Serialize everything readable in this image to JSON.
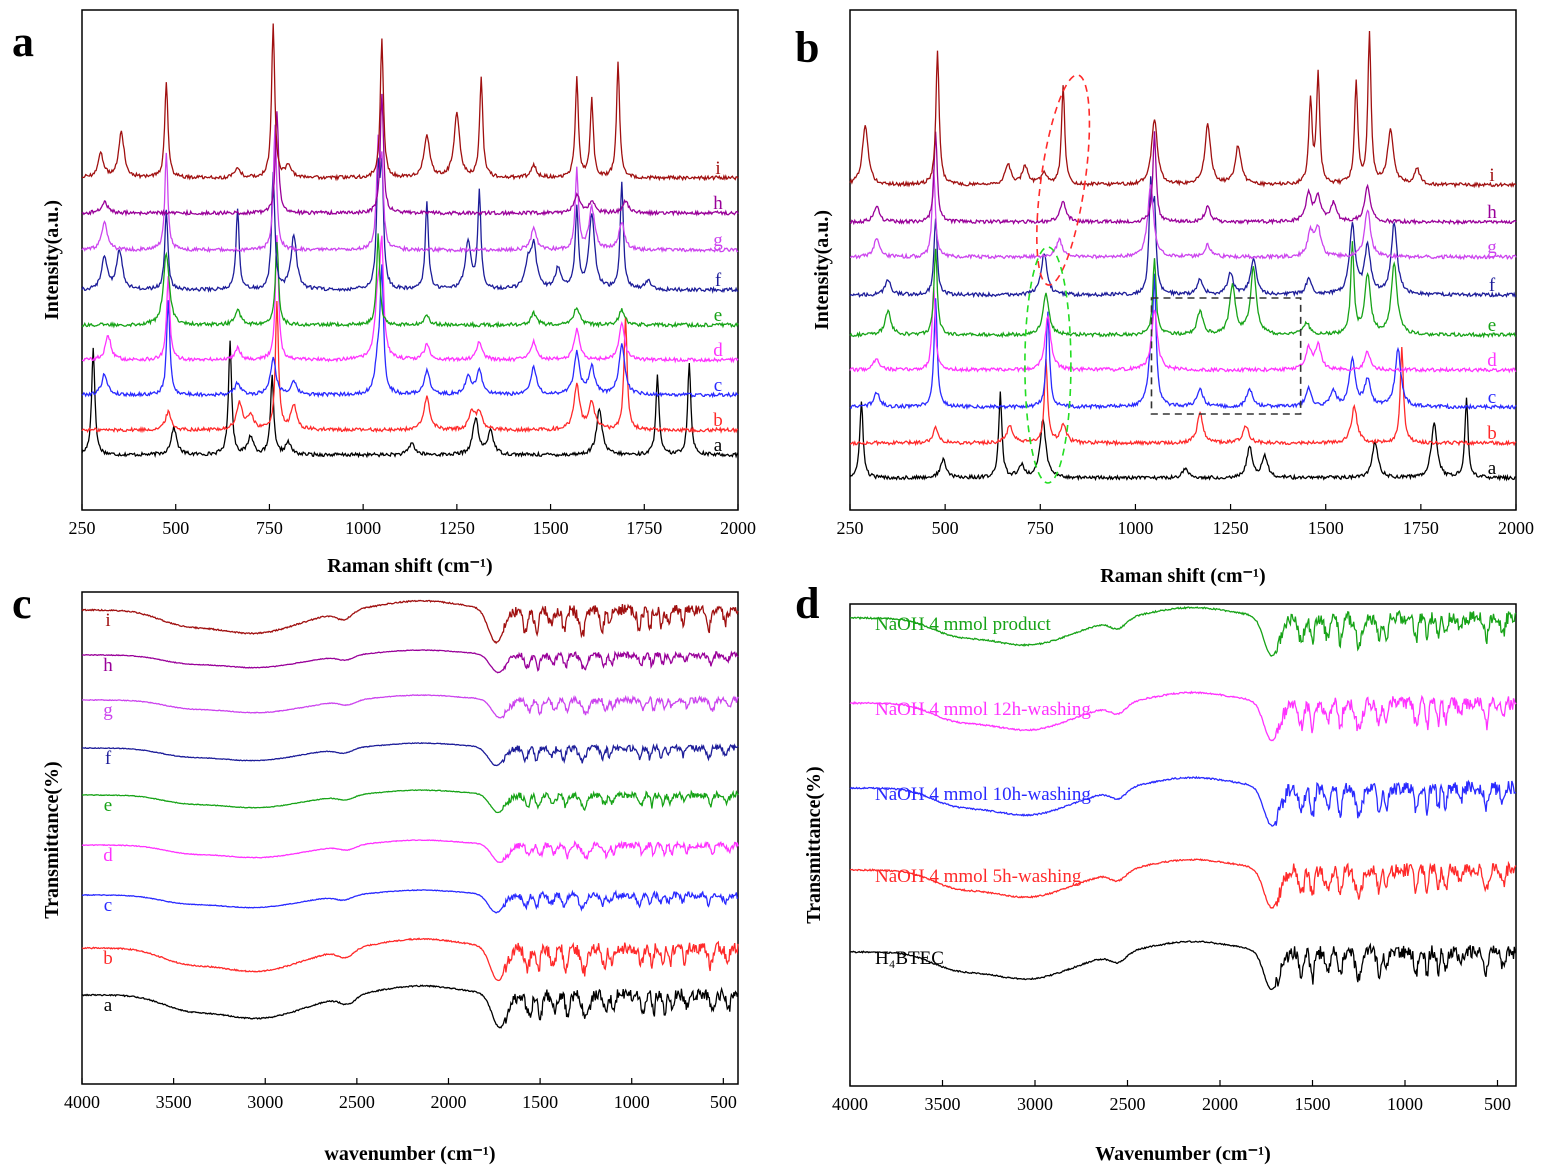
{
  "figure": {
    "panels": [
      {
        "letter": "a",
        "xlabel": "Raman shift (cm⁻¹)",
        "ylabel": "Intensity(a.u.)"
      },
      {
        "letter": "b",
        "xlabel": "Raman shift (cm⁻¹)",
        "ylabel": "Intensity(a.u.)"
      },
      {
        "letter": "c",
        "xlabel": "wavenumber (cm⁻¹)",
        "ylabel": "Transmittance(%)"
      },
      {
        "letter": "d",
        "xlabel": "Wavenumber (cm⁻¹)",
        "ylabel": "Transmittance(%)"
      }
    ]
  },
  "colors": {
    "a": "#000000",
    "b": "#ff2a2a",
    "c": "#2a2aff",
    "d": "#ff33ff",
    "e": "#17a317",
    "f": "#1d1d99",
    "g": "#cc44ee",
    "h": "#990099",
    "i": "#a01010"
  },
  "chart_data": [
    {
      "panel": "a",
      "type": "line",
      "title": "",
      "xlabel": "Raman shift (cm⁻¹)",
      "ylabel": "Intensity(a.u.)",
      "xlim": [
        250,
        2000
      ],
      "xticks": [
        250,
        500,
        750,
        1000,
        1250,
        1500,
        1750,
        2000
      ],
      "reversed": false,
      "series": [
        {
          "name": "a",
          "peaks": [
            [
              280,
              3.6
            ],
            [
              495,
              0.9
            ],
            [
              645,
              3.8
            ],
            [
              700,
              0.6
            ],
            [
              757,
              2.6
            ],
            [
              800,
              0.4
            ],
            [
              1130,
              0.4
            ],
            [
              1300,
              1.2
            ],
            [
              1340,
              0.8
            ],
            [
              1630,
              1.5
            ],
            [
              1785,
              2.7
            ],
            [
              1870,
              3.1
            ]
          ]
        },
        {
          "name": "b",
          "peaks": [
            [
              480,
              0.6
            ],
            [
              670,
              0.9
            ],
            [
              700,
              0.5
            ],
            [
              770,
              4.2
            ],
            [
              815,
              0.8
            ],
            [
              1170,
              1.1
            ],
            [
              1290,
              0.6
            ],
            [
              1310,
              0.6
            ],
            [
              1570,
              1.5
            ],
            [
              1610,
              0.9
            ],
            [
              1700,
              3.8
            ]
          ]
        },
        {
          "name": "c",
          "peaks": [
            [
              310,
              0.7
            ],
            [
              480,
              3.2
            ],
            [
              665,
              0.4
            ],
            [
              760,
              1.2
            ],
            [
              815,
              0.4
            ],
            [
              1040,
              1.2
            ],
            [
              1050,
              3.8
            ],
            [
              1170,
              0.8
            ],
            [
              1280,
              0.6
            ],
            [
              1310,
              0.8
            ],
            [
              1455,
              0.9
            ],
            [
              1570,
              1.4
            ],
            [
              1610,
              0.9
            ],
            [
              1690,
              1.7
            ]
          ]
        },
        {
          "name": "d",
          "peaks": [
            [
              320,
              0.8
            ],
            [
              480,
              2.8
            ],
            [
              665,
              0.4
            ],
            [
              770,
              4.2
            ],
            [
              1040,
              2.2
            ],
            [
              1050,
              3.2
            ],
            [
              1170,
              0.5
            ],
            [
              1310,
              0.6
            ],
            [
              1455,
              0.6
            ],
            [
              1570,
              1.0
            ],
            [
              1690,
              1.2
            ]
          ]
        },
        {
          "name": "e",
          "peaks": [
            [
              475,
              2.4
            ],
            [
              665,
              0.5
            ],
            [
              770,
              2.8
            ],
            [
              1040,
              3.0
            ],
            [
              1170,
              0.3
            ],
            [
              1455,
              0.4
            ],
            [
              1570,
              0.6
            ],
            [
              1690,
              0.5
            ]
          ]
        },
        {
          "name": "f",
          "peaks": [
            [
              310,
              1.1
            ],
            [
              350,
              1.3
            ],
            [
              475,
              2.6
            ],
            [
              665,
              2.7
            ],
            [
              760,
              3.9
            ],
            [
              815,
              1.8
            ],
            [
              1040,
              3.6
            ],
            [
              1050,
              3.8
            ],
            [
              1170,
              2.9
            ],
            [
              1280,
              1.6
            ],
            [
              1310,
              3.2
            ],
            [
              1440,
              0.8
            ],
            [
              1455,
              1.4
            ],
            [
              1520,
              0.7
            ],
            [
              1570,
              2.7
            ],
            [
              1610,
              2.5
            ],
            [
              1690,
              3.6
            ],
            [
              1760,
              0.3
            ]
          ]
        },
        {
          "name": "g",
          "peaks": [
            [
              310,
              0.9
            ],
            [
              475,
              3.2
            ],
            [
              765,
              4.2
            ],
            [
              1040,
              3.3
            ],
            [
              1050,
              2.6
            ],
            [
              1455,
              0.7
            ],
            [
              1570,
              2.7
            ],
            [
              1610,
              1.4
            ],
            [
              1690,
              0.9
            ]
          ]
        },
        {
          "name": "h",
          "peaks": [
            [
              310,
              0.4
            ],
            [
              770,
              3.4
            ],
            [
              1050,
              4.0
            ],
            [
              1570,
              0.6
            ],
            [
              1610,
              0.4
            ],
            [
              1700,
              0.4
            ]
          ]
        },
        {
          "name": "i",
          "peaks": [
            [
              300,
              0.8
            ],
            [
              355,
              1.5
            ],
            [
              475,
              3.2
            ],
            [
              665,
              0.3
            ],
            [
              760,
              5.1
            ],
            [
              800,
              0.4
            ],
            [
              1050,
              4.6
            ],
            [
              1170,
              1.4
            ],
            [
              1250,
              2.1
            ],
            [
              1315,
              3.3
            ],
            [
              1455,
              0.4
            ],
            [
              1570,
              3.3
            ],
            [
              1610,
              2.6
            ],
            [
              1680,
              3.8
            ]
          ]
        }
      ]
    },
    {
      "panel": "b",
      "type": "line",
      "title": "",
      "xlabel": "Raman shift (cm⁻¹)",
      "ylabel": "Intensity(a.u.)",
      "xlim": [
        250,
        2000
      ],
      "xticks": [
        250,
        500,
        750,
        1000,
        1250,
        1500,
        1750,
        2000
      ],
      "reversed": false,
      "series": [
        {
          "name": "a",
          "peaks": [
            [
              280,
              2.6
            ],
            [
              495,
              0.6
            ],
            [
              645,
              2.8
            ],
            [
              700,
              0.4
            ],
            [
              757,
              1.9
            ],
            [
              1130,
              0.3
            ],
            [
              1300,
              1.0
            ],
            [
              1340,
              0.7
            ],
            [
              1630,
              1.2
            ],
            [
              1785,
              1.8
            ],
            [
              1870,
              2.6
            ]
          ]
        },
        {
          "name": "b",
          "peaks": [
            [
              475,
              0.5
            ],
            [
              670,
              0.6
            ],
            [
              765,
              2.8
            ],
            [
              810,
              0.6
            ],
            [
              1170,
              1.0
            ],
            [
              1290,
              0.6
            ],
            [
              1575,
              1.2
            ],
            [
              1700,
              3.2
            ]
          ]
        },
        {
          "name": "c",
          "peaks": [
            [
              320,
              0.5
            ],
            [
              475,
              3.6
            ],
            [
              770,
              3.2
            ],
            [
              1040,
              1.3
            ],
            [
              1050,
              3.8
            ],
            [
              1170,
              0.6
            ],
            [
              1300,
              0.6
            ],
            [
              1455,
              0.6
            ],
            [
              1520,
              0.5
            ],
            [
              1570,
              1.6
            ],
            [
              1610,
              0.9
            ],
            [
              1690,
              1.9
            ]
          ]
        },
        {
          "name": "d",
          "peaks": [
            [
              320,
              0.4
            ],
            [
              470,
              2.8
            ],
            [
              770,
              1.8
            ],
            [
              1050,
              2.0
            ],
            [
              1455,
              0.7
            ],
            [
              1480,
              0.8
            ],
            [
              1610,
              0.6
            ]
          ]
        },
        {
          "name": "e",
          "peaks": [
            [
              350,
              0.8
            ],
            [
              475,
              2.9
            ],
            [
              765,
              1.4
            ],
            [
              1050,
              2.6
            ],
            [
              1170,
              0.8
            ],
            [
              1255,
              1.6
            ],
            [
              1310,
              2.2
            ],
            [
              1450,
              0.4
            ],
            [
              1570,
              3.0
            ],
            [
              1610,
              2.0
            ],
            [
              1680,
              2.4
            ]
          ]
        },
        {
          "name": "f",
          "peaks": [
            [
              350,
              0.5
            ],
            [
              475,
              2.6
            ],
            [
              760,
              1.4
            ],
            [
              1040,
              3.4
            ],
            [
              1050,
              2.6
            ],
            [
              1170,
              0.5
            ],
            [
              1250,
              0.7
            ],
            [
              1310,
              1.2
            ],
            [
              1455,
              0.5
            ],
            [
              1570,
              2.3
            ],
            [
              1610,
              1.6
            ],
            [
              1680,
              2.4
            ]
          ]
        },
        {
          "name": "g",
          "peaks": [
            [
              320,
              0.6
            ],
            [
              470,
              2.9
            ],
            [
              800,
              0.6
            ],
            [
              1040,
              2.4
            ],
            [
              1190,
              0.4
            ],
            [
              1460,
              0.8
            ],
            [
              1480,
              0.9
            ],
            [
              1610,
              1.6
            ]
          ]
        },
        {
          "name": "h",
          "peaks": [
            [
              320,
              0.5
            ],
            [
              475,
              3.0
            ],
            [
              810,
              0.7
            ],
            [
              1050,
              3.0
            ],
            [
              1190,
              0.5
            ],
            [
              1455,
              0.9
            ],
            [
              1480,
              0.8
            ],
            [
              1520,
              0.6
            ],
            [
              1610,
              1.2
            ]
          ]
        },
        {
          "name": "i",
          "peaks": [
            [
              290,
              2.0
            ],
            [
              480,
              4.5
            ],
            [
              665,
              0.7
            ],
            [
              710,
              0.6
            ],
            [
              760,
              0.4
            ],
            [
              810,
              3.3
            ],
            [
              1050,
              2.2
            ],
            [
              1190,
              2.0
            ],
            [
              1270,
              1.3
            ],
            [
              1460,
              2.8
            ],
            [
              1480,
              3.6
            ],
            [
              1580,
              3.4
            ],
            [
              1615,
              5.0
            ],
            [
              1670,
              1.8
            ],
            [
              1740,
              0.5
            ]
          ]
        }
      ],
      "annotations": [
        {
          "shape": "ellipse",
          "color": "#ff2a2a",
          "style": "dashed",
          "center": [
            810,
            "i"
          ]
        },
        {
          "shape": "ellipse",
          "color": "#22dd22",
          "style": "dashed",
          "center": [
            770,
            "c"
          ]
        },
        {
          "shape": "rectangle",
          "color": "#333333",
          "style": "dashed",
          "x_range": [
            1100,
            1400
          ]
        }
      ]
    },
    {
      "panel": "c",
      "type": "line",
      "title": "",
      "xlabel": "wavenumber (cm⁻¹)",
      "ylabel": "Transmittance(%)",
      "xlim": [
        4000,
        420
      ],
      "xticks": [
        4000,
        3500,
        3000,
        2500,
        2000,
        1500,
        1000,
        500
      ],
      "reversed": true,
      "series": [
        {
          "name": "a"
        },
        {
          "name": "b"
        },
        {
          "name": "c"
        },
        {
          "name": "d"
        },
        {
          "name": "e"
        },
        {
          "name": "f"
        },
        {
          "name": "g"
        },
        {
          "name": "h"
        },
        {
          "name": "i"
        }
      ]
    },
    {
      "panel": "d",
      "type": "line",
      "title": "",
      "xlabel": "Wavenumber (cm⁻¹)",
      "ylabel": "Transmittance(%)",
      "xlim": [
        4000,
        400
      ],
      "xticks": [
        4000,
        3500,
        3000,
        2500,
        2000,
        1500,
        1000,
        500
      ],
      "reversed": true,
      "series": [
        {
          "name": "H₄BTEC",
          "color": "#000000"
        },
        {
          "name": "NaOH 4 mmol 5h-washing",
          "color": "#ff2a2a"
        },
        {
          "name": "NaOH 4 mmol 10h-washing",
          "color": "#2a2aff"
        },
        {
          "name": "NaOH 4 mmol 12h-washing",
          "color": "#ff33ff"
        },
        {
          "name": "NaOH 4 mmol product",
          "color": "#17a317"
        }
      ]
    }
  ]
}
